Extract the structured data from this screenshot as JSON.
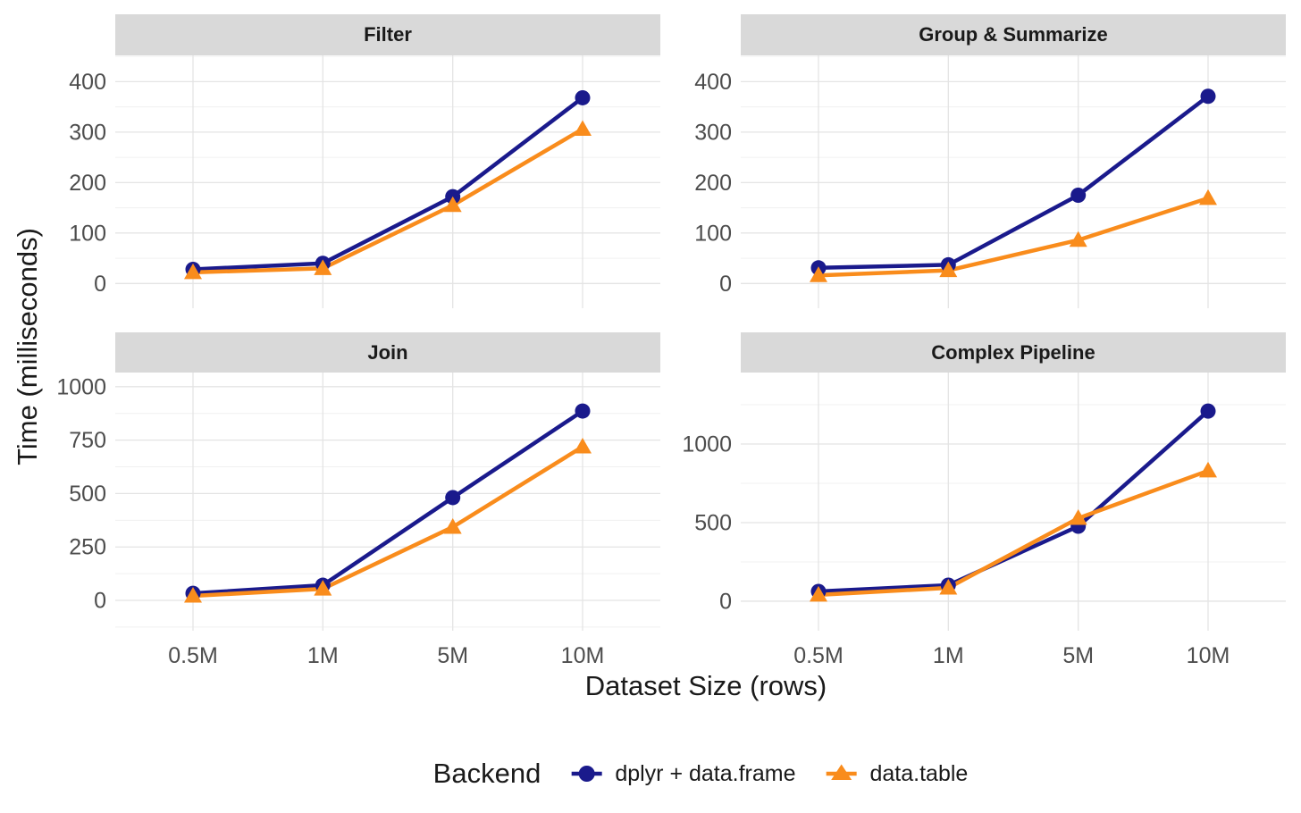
{
  "figure": {
    "y_axis_title": "Time (milliseconds)",
    "x_axis_title": "Dataset Size (rows)",
    "colors": {
      "dplyr": "#1A1A8C",
      "data_table": "#F98C1C",
      "strip_bg": "#D9D9D9",
      "grid_major": "#E4E4E4",
      "grid_minor": "#F0F0F0",
      "tick_text": "#4D4D4D",
      "title_text": "#1A1A1A",
      "background": "#FFFFFF"
    },
    "legend": {
      "title": "Backend",
      "items": [
        {
          "label": "dplyr + data.frame",
          "marker": "circle",
          "color": "#1A1A8C"
        },
        {
          "label": "data.table",
          "marker": "triangle",
          "color": "#F98C1C"
        }
      ]
    }
  },
  "chart_data": {
    "type": "line",
    "title": "",
    "xlabel": "Dataset Size (rows)",
    "ylabel": "Time (milliseconds)",
    "categories": [
      "0.5M",
      "1M",
      "5M",
      "10M"
    ],
    "grid": "on",
    "legend_position": "bottom",
    "facets": [
      {
        "id": "filter",
        "title": "Filter",
        "row": 0,
        "col": 0,
        "ylim": [
          -49,
          452
        ],
        "y_ticks": [
          0,
          100,
          200,
          300,
          400
        ],
        "y_minor": [
          50,
          150,
          250,
          350,
          450
        ],
        "series": [
          {
            "name": "dplyr + data.frame",
            "marker": "circle",
            "color": "#1A1A8C",
            "values": [
              28,
              40,
              172,
              368
            ]
          },
          {
            "name": "data.table",
            "marker": "triangle",
            "color": "#F98C1C",
            "values": [
              22,
              30,
              155,
              306
            ]
          }
        ]
      },
      {
        "id": "group-summarize",
        "title": "Group & Summarize",
        "row": 0,
        "col": 1,
        "ylim": [
          -49,
          452
        ],
        "y_ticks": [
          0,
          100,
          200,
          300,
          400
        ],
        "y_minor": [
          50,
          150,
          250,
          350,
          450
        ],
        "series": [
          {
            "name": "dplyr + data.frame",
            "marker": "circle",
            "color": "#1A1A8C",
            "values": [
              31,
              37,
              175,
              371
            ]
          },
          {
            "name": "data.table",
            "marker": "triangle",
            "color": "#F98C1C",
            "values": [
              16,
              26,
              86,
              169
            ]
          }
        ]
      },
      {
        "id": "join",
        "title": "Join",
        "row": 1,
        "col": 0,
        "ylim": [
          -142,
          1066
        ],
        "y_ticks": [
          0,
          250,
          500,
          750,
          1000
        ],
        "y_minor": [
          -125,
          125,
          375,
          625,
          875
        ],
        "series": [
          {
            "name": "dplyr + data.frame",
            "marker": "circle",
            "color": "#1A1A8C",
            "values": [
              33,
              71,
              481,
              886
            ]
          },
          {
            "name": "data.table",
            "marker": "triangle",
            "color": "#F98C1C",
            "values": [
              21,
              54,
              343,
              719
            ]
          }
        ]
      },
      {
        "id": "complex-pipeline",
        "title": "Complex Pipeline",
        "row": 1,
        "col": 1,
        "ylim": [
          -188,
          1455
        ],
        "y_ticks": [
          0,
          500,
          1000
        ],
        "y_minor": [
          250,
          750,
          1250
        ],
        "series": [
          {
            "name": "dplyr + data.frame",
            "marker": "circle",
            "color": "#1A1A8C",
            "values": [
              62,
              102,
              477,
              1210
            ]
          },
          {
            "name": "data.table",
            "marker": "triangle",
            "color": "#F98C1C",
            "values": [
              40,
              85,
              528,
              830
            ]
          }
        ]
      }
    ]
  }
}
